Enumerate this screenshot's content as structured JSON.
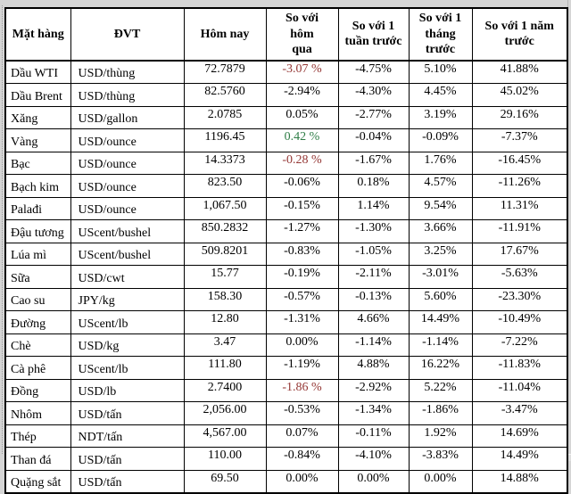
{
  "page": {
    "background_color": "#d5d5d5",
    "negative_highlight_color": "#943634",
    "positive_highlight_color": "#2e7d46"
  },
  "table": {
    "headers": [
      {
        "label": "Mặt hàng"
      },
      {
        "label": "ĐVT"
      },
      {
        "label": "Hôm nay"
      },
      {
        "label": "So với\nhôm\nqua"
      },
      {
        "label": "So với 1\ntuần trước"
      },
      {
        "label": "So với 1\ntháng\ntrước"
      },
      {
        "label": "So với 1 năm\ntrước"
      }
    ],
    "rows": [
      {
        "name": "Dầu WTI",
        "unit": "USD/thùng",
        "today": "72.7879",
        "vs_yesterday": "-3.07 %",
        "vs_yesterday_color": "red",
        "vs_week": "-4.75%",
        "vs_month": "5.10%",
        "vs_year": "41.88%"
      },
      {
        "name": "Dầu Brent",
        "unit": "USD/thùng",
        "today": "82.5760",
        "vs_yesterday": "-2.94%",
        "vs_yesterday_color": "",
        "vs_week": "-4.30%",
        "vs_month": "4.45%",
        "vs_year": "45.02%"
      },
      {
        "name": "Xăng",
        "unit": "USD/gallon",
        "today": "2.0785",
        "vs_yesterday": "0.05%",
        "vs_yesterday_color": "",
        "vs_week": "-2.77%",
        "vs_month": "3.19%",
        "vs_year": "29.16%"
      },
      {
        "name": "Vàng",
        "unit": "USD/ounce",
        "today": "1196.45",
        "vs_yesterday": "0.42 %",
        "vs_yesterday_color": "green",
        "vs_week": "-0.04%",
        "vs_month": "-0.09%",
        "vs_year": "-7.37%"
      },
      {
        "name": "Bạc",
        "unit": "USD/ounce",
        "today": "14.3373",
        "vs_yesterday": "-0.28 %",
        "vs_yesterday_color": "red",
        "vs_week": "-1.67%",
        "vs_month": "1.76%",
        "vs_year": "-16.45%"
      },
      {
        "name": "Bạch kim",
        "unit": "USD/ounce",
        "today": "823.50",
        "vs_yesterday": "-0.06%",
        "vs_yesterday_color": "",
        "vs_week": "0.18%",
        "vs_month": "4.57%",
        "vs_year": "-11.26%"
      },
      {
        "name": "Palađi",
        "unit": "USD/ounce",
        "today": "1,067.50",
        "vs_yesterday": "-0.15%",
        "vs_yesterday_color": "",
        "vs_week": "1.14%",
        "vs_month": "9.54%",
        "vs_year": "11.31%"
      },
      {
        "name": "Đậu tương",
        "unit": "UScent/bushel",
        "today": "850.2832",
        "vs_yesterday": "-1.27%",
        "vs_yesterday_color": "",
        "vs_week": "-1.30%",
        "vs_month": "3.66%",
        "vs_year": "-11.91%"
      },
      {
        "name": "Lúa mì",
        "unit": "UScent/bushel",
        "today": "509.8201",
        "vs_yesterday": "-0.83%",
        "vs_yesterday_color": "",
        "vs_week": "-1.05%",
        "vs_month": "3.25%",
        "vs_year": "17.67%"
      },
      {
        "name": "Sữa",
        "unit": "USD/cwt",
        "today": "15.77",
        "vs_yesterday": "-0.19%",
        "vs_yesterday_color": "",
        "vs_week": "-2.11%",
        "vs_month": "-3.01%",
        "vs_year": "-5.63%"
      },
      {
        "name": "Cao su",
        "unit": "JPY/kg",
        "today": "158.30",
        "vs_yesterday": "-0.57%",
        "vs_yesterday_color": "",
        "vs_week": "-0.13%",
        "vs_month": "5.60%",
        "vs_year": "-23.30%"
      },
      {
        "name": "Đường",
        "unit": "UScent/lb",
        "today": "12.80",
        "vs_yesterday": "-1.31%",
        "vs_yesterday_color": "",
        "vs_week": "4.66%",
        "vs_month": "14.49%",
        "vs_year": "-10.49%"
      },
      {
        "name": "Chè",
        "unit": "USD/kg",
        "today": "3.47",
        "vs_yesterday": "0.00%",
        "vs_yesterday_color": "",
        "vs_week": "-1.14%",
        "vs_month": "-1.14%",
        "vs_year": "-7.22%"
      },
      {
        "name": "Cà phê",
        "unit": "UScent/lb",
        "today": "111.80",
        "vs_yesterday": "-1.19%",
        "vs_yesterday_color": "",
        "vs_week": "4.88%",
        "vs_month": "16.22%",
        "vs_year": "-11.83%"
      },
      {
        "name": "Đồng",
        "unit": "USD/lb",
        "today": "2.7400",
        "vs_yesterday": "-1.86 %",
        "vs_yesterday_color": "red",
        "vs_week": "-2.92%",
        "vs_month": "5.22%",
        "vs_year": "-11.04%"
      },
      {
        "name": "Nhôm",
        "unit": "USD/tấn",
        "today": "2,056.00",
        "vs_yesterday": "-0.53%",
        "vs_yesterday_color": "",
        "vs_week": "-1.34%",
        "vs_month": "-1.86%",
        "vs_year": "-3.47%"
      },
      {
        "name": "Thép",
        "unit": "NDT/tấn",
        "today": "4,567.00",
        "vs_yesterday": "0.07%",
        "vs_yesterday_color": "",
        "vs_week": "-0.11%",
        "vs_month": "1.92%",
        "vs_year": "14.69%"
      },
      {
        "name": "Than đá",
        "unit": "USD/tấn",
        "today": "110.00",
        "vs_yesterday": "-0.84%",
        "vs_yesterday_color": "",
        "vs_week": "-4.10%",
        "vs_month": "-3.83%",
        "vs_year": "14.49%"
      },
      {
        "name": "Quặng sắt",
        "unit": "USD/tấn",
        "today": "69.50",
        "vs_yesterday": "0.00%",
        "vs_yesterday_color": "",
        "vs_week": "0.00%",
        "vs_month": "0.00%",
        "vs_year": "14.88%"
      }
    ]
  }
}
